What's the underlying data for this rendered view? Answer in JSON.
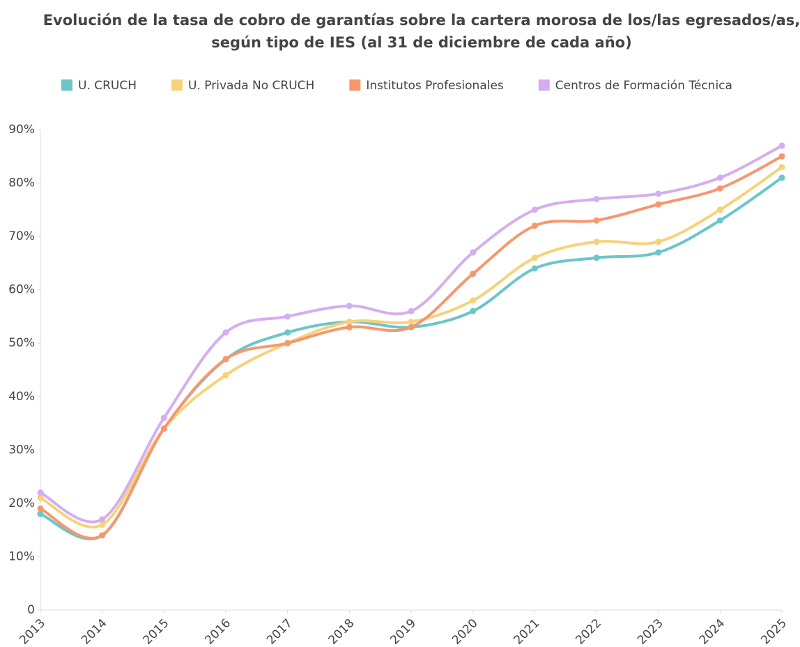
{
  "chart_data": {
    "type": "line",
    "title": [
      "Evolución de la tasa de cobro de garantías sobre la cartera morosa de los/las egresados/as,",
      "según tipo de IES (al 31 de diciembre de cada año)"
    ],
    "categories": [
      "2013",
      "2014",
      "2015",
      "2016",
      "2017",
      "2018",
      "2019",
      "2020",
      "2021",
      "2022",
      "2023",
      "2024",
      "2025"
    ],
    "series": [
      {
        "name": "U. CRUCH",
        "color": "#6cc5c9",
        "values": [
          18,
          14,
          34,
          47,
          52,
          54,
          53,
          56,
          64,
          66,
          67,
          73,
          81
        ]
      },
      {
        "name": "U. Privada No CRUCH",
        "color": "#f7d27a",
        "values": [
          21,
          16,
          34,
          44,
          50,
          54,
          54,
          58,
          66,
          69,
          69,
          75,
          83
        ]
      },
      {
        "name": "Institutos Profesionales",
        "color": "#f5986f",
        "values": [
          19,
          14,
          34,
          47,
          50,
          53,
          53,
          63,
          72,
          73,
          76,
          79,
          85
        ]
      },
      {
        "name": "Centros de Formación Técnica",
        "color": "#d4aef0",
        "values": [
          22,
          17,
          36,
          52,
          55,
          57,
          56,
          67,
          75,
          77,
          78,
          81,
          87
        ]
      }
    ],
    "ylim": [
      0,
      90
    ],
    "yticks": [
      0,
      {
        "value": 10,
        "label": "10%"
      },
      {
        "value": 20,
        "label": "20%"
      },
      {
        "value": 30,
        "label": "30%"
      },
      {
        "value": 40,
        "label": "40%"
      },
      {
        "value": 50,
        "label": "50%"
      },
      {
        "value": 60,
        "label": "60%"
      },
      {
        "value": 70,
        "label": "70%"
      },
      {
        "value": 80,
        "label": "80%"
      },
      {
        "value": 90,
        "label": "90%"
      }
    ],
    "grid": false,
    "legend": "top"
  }
}
